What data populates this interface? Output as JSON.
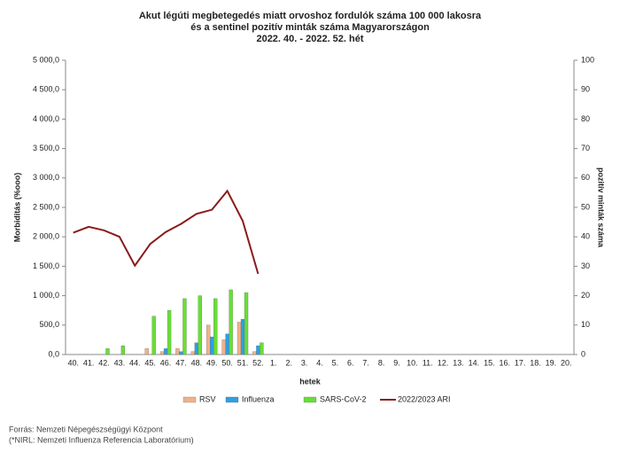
{
  "chart_data": {
    "type": "bar",
    "title": [
      "Akut légúti megbetegedés miatt orvoshoz fordulók száma 100 000 lakosra",
      "és a sentinel pozitív minták száma Magyarországon",
      "2022. 40. - 2022. 52. hét"
    ],
    "x_label": "hetek",
    "y_label": "Morbiditás (%ooo)",
    "y2_label": "pozitív minták száma",
    "categories": [
      "40.",
      "41.",
      "42.",
      "43.",
      "44.",
      "45.",
      "46.",
      "47.",
      "48.",
      "49.",
      "50.",
      "51.",
      "52.",
      "1.",
      "2.",
      "3.",
      "4.",
      "5.",
      "6.",
      "7.",
      "8.",
      "9.",
      "10.",
      "11.",
      "12.",
      "13.",
      "14.",
      "15.",
      "16.",
      "17.",
      "18.",
      "19.",
      "20."
    ],
    "ylim": [
      0,
      5000
    ],
    "yticks": [
      {
        "value": 0,
        "label": "0,0"
      },
      {
        "value": 500,
        "label": "500,0"
      },
      {
        "value": 1000,
        "label": "1 000,0"
      },
      {
        "value": 1500,
        "label": "1 500,0"
      },
      {
        "value": 2000,
        "label": "2 000,0"
      },
      {
        "value": 2500,
        "label": "2 500,0"
      },
      {
        "value": 3000,
        "label": "3 000,0"
      },
      {
        "value": 3500,
        "label": "3 500,0"
      },
      {
        "value": 4000,
        "label": "4 000,0"
      },
      {
        "value": 4500,
        "label": "4 500,0"
      },
      {
        "value": 5000,
        "label": "5 000,0"
      }
    ],
    "y2lim": [
      0,
      100
    ],
    "y2ticks": [
      0,
      10,
      20,
      30,
      40,
      50,
      60,
      70,
      80,
      90,
      100
    ],
    "series": [
      {
        "name": "RSV",
        "color": "#f4b183",
        "axis": "y2",
        "values": [
          null,
          null,
          0,
          0,
          0,
          2,
          1,
          2,
          1,
          10,
          5,
          11,
          1,
          null,
          null,
          null,
          null,
          null,
          null,
          null,
          null,
          null,
          null,
          null,
          null,
          null,
          null,
          null,
          null,
          null,
          null,
          null,
          null
        ]
      },
      {
        "name": "Influenza",
        "color": "#2e9fe6",
        "axis": "y2",
        "values": [
          null,
          null,
          0,
          0,
          0,
          0,
          2,
          1,
          4,
          6,
          7,
          12,
          3,
          null,
          null,
          null,
          null,
          null,
          null,
          null,
          null,
          null,
          null,
          null,
          null,
          null,
          null,
          null,
          null,
          null,
          null,
          null,
          null
        ]
      },
      {
        "name": "SARS-CoV-2",
        "color": "#66e033",
        "axis": "y2",
        "values": [
          null,
          null,
          2,
          3,
          0,
          13,
          15,
          19,
          20,
          19,
          22,
          21,
          4,
          null,
          null,
          null,
          null,
          null,
          null,
          null,
          null,
          null,
          null,
          null,
          null,
          null,
          null,
          null,
          null,
          null,
          null,
          null,
          null
        ]
      },
      {
        "name": "2022/2023 ARI",
        "color": "#8b1a1a",
        "type": "line",
        "values": [
          2070,
          2170,
          2110,
          2000,
          1510,
          1880,
          2080,
          2220,
          2390,
          2460,
          2780,
          2270,
          1370,
          null,
          null,
          null,
          null,
          null,
          null,
          null,
          null,
          null,
          null,
          null,
          null,
          null,
          null,
          null,
          null,
          null,
          null,
          null,
          null
        ]
      }
    ],
    "source": [
      "Forrás: Nemzeti Népegészségügyi Központ",
      "(*NIRL: Nemzeti Influenza Referencia Laboratórium)"
    ]
  }
}
